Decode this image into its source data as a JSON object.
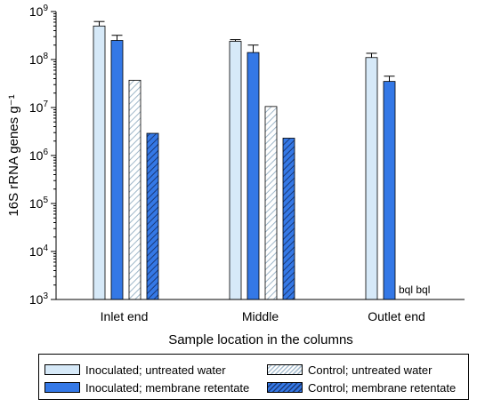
{
  "chart_data": {
    "type": "bar",
    "xlabel": "Sample location in the columns",
    "ylabel": "16S rRNA genes g⁻¹",
    "yscale": "log",
    "ylim": [
      1000,
      1000000000
    ],
    "yticks": [
      {
        "base": "10",
        "exp": "3"
      },
      {
        "base": "10",
        "exp": "4"
      },
      {
        "base": "10",
        "exp": "5"
      },
      {
        "base": "10",
        "exp": "6"
      },
      {
        "base": "10",
        "exp": "7"
      },
      {
        "base": "10",
        "exp": "8"
      },
      {
        "base": "10",
        "exp": "9"
      }
    ],
    "categories": [
      "Inlet end",
      "Middle",
      "Outlet end"
    ],
    "series": [
      {
        "name": "Inoculated; untreated water",
        "color": "#d6e9f8",
        "pattern": "solid",
        "values": [
          500000000,
          240000000,
          110000000
        ],
        "error_high": [
          620000000,
          260000000,
          135000000
        ]
      },
      {
        "name": "Inoculated; membrane retentate",
        "color": "#3478e6",
        "pattern": "solid",
        "values": [
          250000000,
          140000000,
          35000000
        ],
        "error_high": [
          320000000,
          200000000,
          45000000
        ]
      },
      {
        "name": "Control; untreated water",
        "color": "#d6e9f8",
        "pattern": "hatch",
        "values": [
          37000000,
          10500000,
          null
        ]
      },
      {
        "name": "Control; membrane retentate",
        "color": "#3478e6",
        "pattern": "hatch",
        "values": [
          2900000,
          2300000,
          null
        ]
      }
    ],
    "annotations": [
      {
        "text": "bql bql",
        "category": "Outlet end"
      }
    ],
    "legend": "bottom",
    "grid": false
  }
}
